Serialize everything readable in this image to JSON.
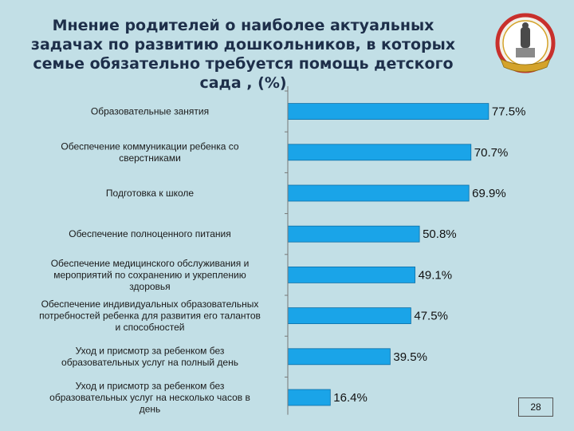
{
  "slide": {
    "page_number": "28"
  },
  "emblem": {
    "icon": "university-emblem-icon",
    "ring_color": "#c8302c",
    "gold_color": "#d4a32a"
  },
  "chart_data": {
    "type": "bar",
    "orientation": "horizontal",
    "title": "Мнение родителей о наиболее актуальных задачах по развитию дошкольников, в которых семье обязательно требуется помощь детского сада , (%)",
    "categories": [
      [
        "Образовательные занятия"
      ],
      [
        "Обеспечение коммуникации ребенка со",
        "сверстниками"
      ],
      [
        "Подготовка к школе"
      ],
      [
        "Обеспечение полноценного питания"
      ],
      [
        "Обеспечение медицинского обслуживания  и",
        "мероприятий по сохранению и укреплению",
        "здоровья"
      ],
      [
        "Обеспечение индивидуальных образовательных",
        "потребностей ребенка для развития его талантов",
        "и способностей"
      ],
      [
        "Уход  и присмотр за ребенком без",
        "образовательных услуг на полный день"
      ],
      [
        "Уход  и присмотр за ребенком без",
        "образовательных услуг на несколько часов в",
        "день"
      ]
    ],
    "values": [
      77.5,
      70.7,
      69.9,
      50.8,
      49.1,
      47.5,
      39.5,
      16.4
    ],
    "value_labels": [
      "77.5%",
      "70.7%",
      "69.9%",
      "50.8%",
      "49.1%",
      "47.5%",
      "39.5%",
      "16.4%"
    ],
    "xlim": [
      0,
      100
    ],
    "bar_color": "#1aa4e8",
    "grid": false,
    "legend": "none"
  }
}
